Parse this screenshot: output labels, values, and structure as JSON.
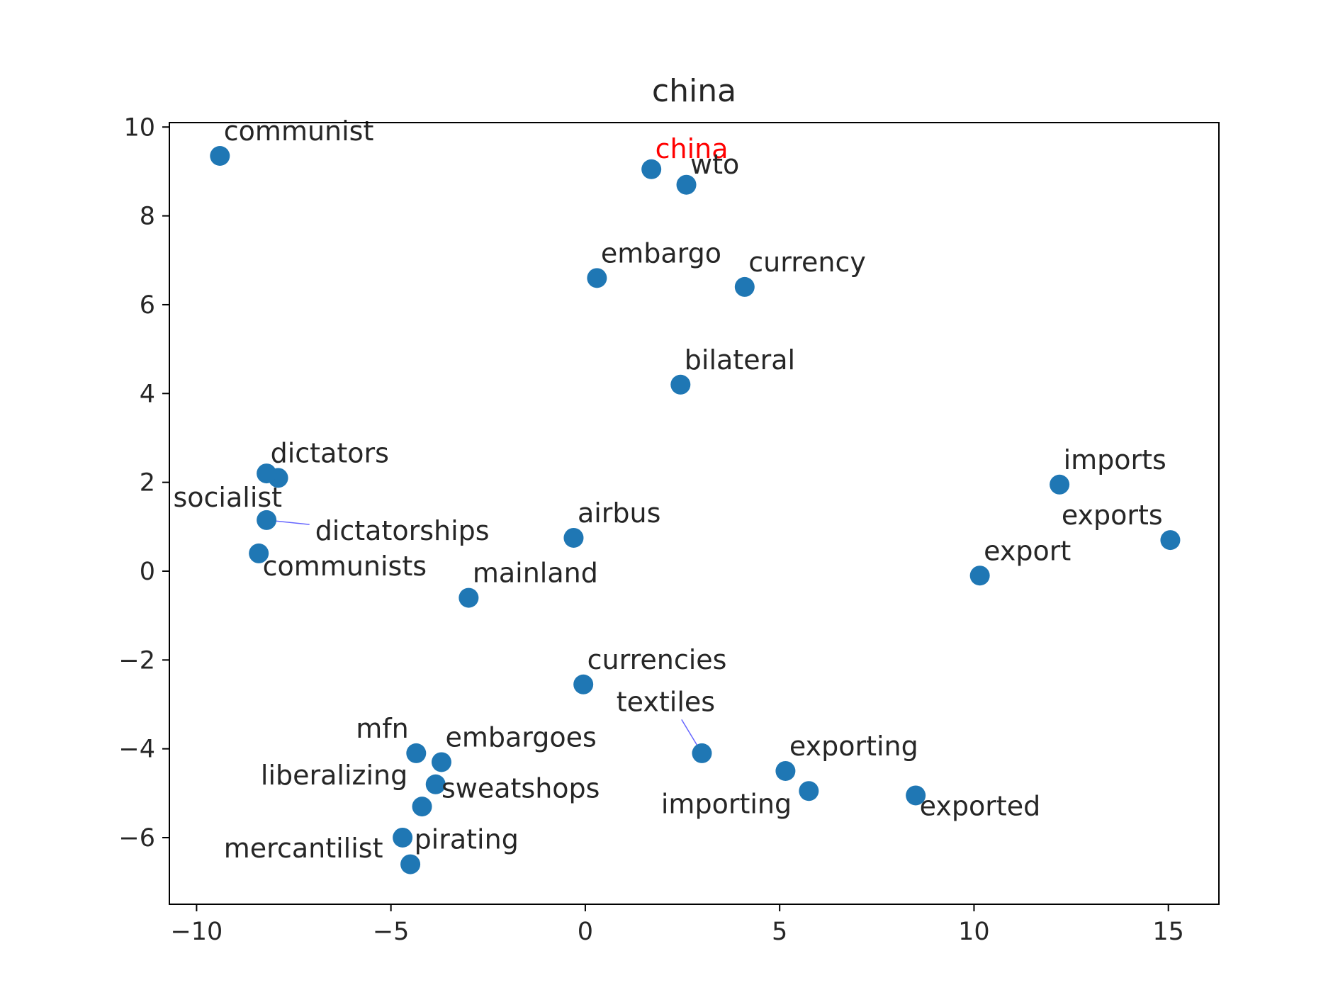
{
  "chart_data": {
    "type": "scatter",
    "title": "china",
    "xlabel": "",
    "ylabel": "",
    "xlim": [
      -10.7,
      16.3
    ],
    "ylim": [
      -7.5,
      10.1
    ],
    "xticks": [
      -10,
      -5,
      0,
      5,
      10,
      15
    ],
    "yticks": [
      -6,
      -4,
      -2,
      0,
      2,
      4,
      6,
      8,
      10
    ],
    "xtick_labels": [
      "−10",
      "−5",
      "0",
      "5",
      "10",
      "15"
    ],
    "ytick_labels": [
      "−6",
      "−4",
      "−2",
      "0",
      "2",
      "4",
      "6",
      "8",
      "10"
    ],
    "grid": false,
    "marker_color": "#1f77b4",
    "highlight_color": "#ff0000",
    "connector_color": "#0000ff",
    "points": [
      {
        "label": "china",
        "x": 1.7,
        "y": 9.05,
        "highlight": true,
        "dx": 0.1,
        "dy": 0.25
      },
      {
        "label": "wto",
        "x": 2.6,
        "y": 8.7,
        "dx": 0.1,
        "dy": 0.25
      },
      {
        "label": "communist",
        "x": -9.4,
        "y": 9.35,
        "dx": 0.1,
        "dy": 0.35
      },
      {
        "label": "embargo",
        "x": 0.3,
        "y": 6.6,
        "dx": 0.1,
        "dy": 0.35
      },
      {
        "label": "currency",
        "x": 4.1,
        "y": 6.4,
        "dx": 0.1,
        "dy": 0.35
      },
      {
        "label": "bilateral",
        "x": 2.45,
        "y": 4.2,
        "dx": 0.1,
        "dy": 0.35
      },
      {
        "label": "dictators",
        "x": -7.9,
        "y": 2.1,
        "dx": -0.2,
        "dy": 0.35
      },
      {
        "label": "socialist",
        "x": -8.2,
        "y": 2.2,
        "dx": -2.4,
        "dy": -0.75
      },
      {
        "label": "dictatorships",
        "x": -8.2,
        "y": 1.15,
        "dx": 1.25,
        "dy": -0.45,
        "connector": true
      },
      {
        "label": "communists",
        "x": -8.4,
        "y": 0.4,
        "dx": 0.1,
        "dy": -0.5
      },
      {
        "label": "airbus",
        "x": -0.3,
        "y": 0.75,
        "dx": 0.1,
        "dy": 0.35
      },
      {
        "label": "mainland",
        "x": -3.0,
        "y": -0.6,
        "dx": 0.1,
        "dy": 0.35
      },
      {
        "label": "imports",
        "x": 12.2,
        "y": 1.95,
        "dx": 0.1,
        "dy": 0.35
      },
      {
        "label": "exports",
        "x": 15.05,
        "y": 0.7,
        "dx": -2.8,
        "dy": 0.35
      },
      {
        "label": "export",
        "x": 10.15,
        "y": -0.1,
        "dx": 0.1,
        "dy": 0.35
      },
      {
        "label": "currencies",
        "x": -0.05,
        "y": -2.55,
        "dx": 0.1,
        "dy": 0.35
      },
      {
        "label": "textiles",
        "x": 3.0,
        "y": -4.1,
        "dx": -2.2,
        "dy": 0.95,
        "connector": true
      },
      {
        "label": "mfn",
        "x": -4.35,
        "y": -4.1,
        "dx": -1.55,
        "dy": 0.35
      },
      {
        "label": "embargoes",
        "x": -3.7,
        "y": -4.3,
        "dx": 0.1,
        "dy": 0.35
      },
      {
        "label": "liberalizing",
        "x": -3.85,
        "y": -4.8,
        "dx": -4.5,
        "dy": 0.0
      },
      {
        "label": "sweatshops",
        "x": -4.2,
        "y": -5.3,
        "dx": 0.5,
        "dy": 0.2
      },
      {
        "label": "exporting",
        "x": 5.15,
        "y": -4.5,
        "dx": 0.1,
        "dy": 0.35
      },
      {
        "label": "importing",
        "x": 5.75,
        "y": -4.95,
        "dx": -3.8,
        "dy": -0.5
      },
      {
        "label": "exported",
        "x": 8.5,
        "y": -5.05,
        "dx": 0.1,
        "dy": -0.45
      },
      {
        "label": "mercantilist",
        "x": -4.7,
        "y": -6.0,
        "dx": -4.6,
        "dy": -0.45
      },
      {
        "label": "pirating",
        "x": -4.5,
        "y": -6.6,
        "dx": 0.1,
        "dy": 0.35
      }
    ]
  }
}
